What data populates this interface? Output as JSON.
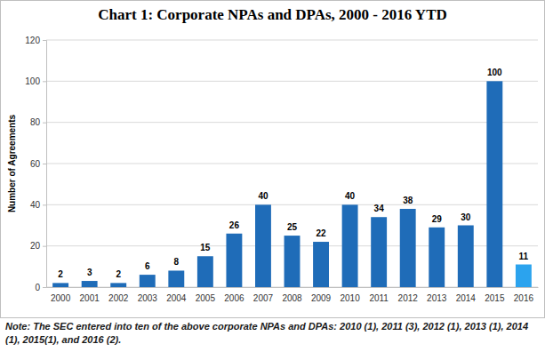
{
  "chart_data": {
    "type": "bar",
    "title": "Chart 1: Corporate NPAs and DPAs, 2000 - 2016 YTD",
    "y_label": "Number of Agreements",
    "note": "Note: The SEC entered into ten of the above corporate NPAs and DPAs: 2010 (1), 2011 (3), 2012 (1), 2013 (1), 2014 (1), 2015(1), and 2016 (2).",
    "categories": [
      "2000",
      "2001",
      "2002",
      "2003",
      "2004",
      "2005",
      "2006",
      "2007",
      "2008",
      "2009",
      "2010",
      "2011",
      "2012",
      "2013",
      "2014",
      "2015",
      "2016"
    ],
    "values": [
      2,
      3,
      2,
      6,
      8,
      15,
      26,
      40,
      25,
      22,
      40,
      34,
      38,
      29,
      30,
      100,
      11
    ],
    "colors": [
      "#1f6cb8",
      "#1f6cb8",
      "#1f6cb8",
      "#1f6cb8",
      "#1f6cb8",
      "#1f6cb8",
      "#1f6cb8",
      "#1f6cb8",
      "#1f6cb8",
      "#1f6cb8",
      "#1f6cb8",
      "#1f6cb8",
      "#1f6cb8",
      "#1f6cb8",
      "#1f6cb8",
      "#1f6cb8",
      "#2ba3ee"
    ],
    "ylim": [
      0,
      120
    ],
    "yticks": [
      0,
      20,
      40,
      60,
      80,
      100,
      120
    ],
    "grid": true,
    "data_labels": true
  }
}
